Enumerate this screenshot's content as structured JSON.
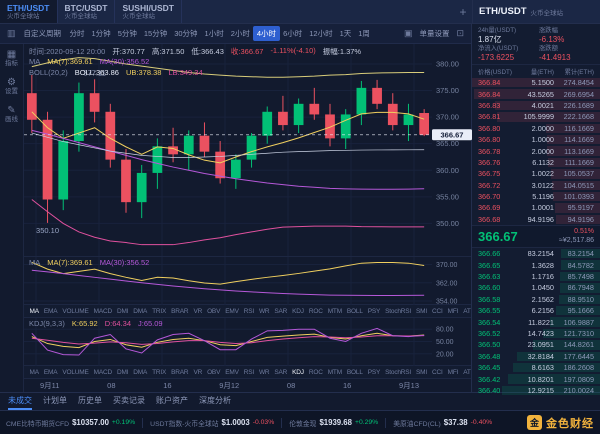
{
  "colors": {
    "green": "#02c076",
    "red": "#eb5160",
    "blue": "#4c8ef7",
    "yellow": "#f0cf5f",
    "purple": "#b558d8",
    "magenta": "#e0519e",
    "white_line": "#cdd4e6",
    "gold": "#f2b33d",
    "grid": "#18223c",
    "axis_text": "#76829f"
  },
  "icons": {
    "gear": "⚙",
    "pencil": "✎",
    "grid": "▦",
    "camera": "▣",
    "expand": "⊡",
    "candle": "▥",
    "star": "☆",
    "plus": "+"
  },
  "topbar": {
    "tabs": [
      {
        "symbol": "ETH/USDT",
        "sub": "火币全球站",
        "active": true
      },
      {
        "symbol": "BTC/USDT",
        "sub": "火币全球站",
        "active": false
      },
      {
        "symbol": "SUSHI/USDT",
        "sub": "火币全球站",
        "active": false
      }
    ],
    "add_button": "+"
  },
  "toolbar": {
    "custom_period": "自定义周期",
    "timeframes": [
      "分时",
      "1分钟",
      "5分钟",
      "15分钟",
      "30分钟",
      "1小时",
      "2小时",
      "4小时",
      "6小时",
      "12小时",
      "1天",
      "1周"
    ],
    "active_timeframe": "4小时",
    "right_label": "单量设置"
  },
  "side_tools": [
    {
      "label": "指标",
      "glyph": "grid"
    },
    {
      "label": "设置",
      "glyph": "gear"
    },
    {
      "label": "画线",
      "glyph": "pencil"
    }
  ],
  "chart_header": {
    "ohlc": [
      {
        "t": "时间:2020-09-12 20:00",
        "c": "gray"
      },
      {
        "t": "开:370.77",
        "c": "light"
      },
      {
        "t": "高:371.50",
        "c": "light"
      },
      {
        "t": "低:366.43",
        "c": "light"
      },
      {
        "t": "收:366.67",
        "c": "red"
      },
      {
        "t": "-1.11%(-4.10)",
        "c": "red"
      },
      {
        "t": "振幅:1.37%",
        "c": "light"
      }
    ],
    "ma_line": [
      {
        "t": "MA",
        "c": "gray"
      },
      {
        "t": "MA(7):369.61",
        "c": "yellow"
      },
      {
        "t": "MA(30):356.52",
        "c": "purple"
      }
    ],
    "boll_line": [
      {
        "t": "BOLL(20,2)",
        "c": "gray"
      },
      {
        "t": "BOLL:363.86",
        "c": "white"
      },
      {
        "t": "UB:378.38",
        "c": "yellow"
      },
      {
        "t": "LB:349.34",
        "c": "magenta"
      }
    ]
  },
  "ma_pane_header": [
    {
      "t": "MA",
      "c": "gray"
    },
    {
      "t": "MA(7):369.61",
      "c": "yellow"
    },
    {
      "t": "MA(30):356.52",
      "c": "purple"
    }
  ],
  "kdj_header": [
    {
      "t": "KDJ(9,3,3)",
      "c": "gray"
    },
    {
      "t": "K:65.92",
      "c": "yellow"
    },
    {
      "t": "D:64.34",
      "c": "magenta"
    },
    {
      "t": "J:65.09",
      "c": "purple"
    }
  ],
  "indicator_tabs": {
    "items": [
      "MA",
      "EMA",
      "VOLUME",
      "MACD",
      "DMI",
      "DMA",
      "TRIX",
      "BRAR",
      "VR",
      "OBV",
      "EMV",
      "RSI",
      "WR",
      "SAR",
      "KDJ",
      "ROC",
      "MTM",
      "BOLL",
      "PSY",
      "StochRSI",
      "SMI",
      "CCI",
      "MFI",
      "ATR"
    ],
    "row1_active": "MA",
    "row2_active": "KDJ"
  },
  "order_book": {
    "title_symbol": "ETH/USDT",
    "title_exchange": "火币全球站",
    "stats": [
      {
        "label": "24h量(USDT)",
        "value": "1.87亿",
        "tone": "light"
      },
      {
        "label": "涨跌幅",
        "value": "-6.13%",
        "tone": "red"
      },
      {
        "label": "净流入(USDT)",
        "value": "-173.6225",
        "tone": "red"
      },
      {
        "label": "涨跌额",
        "value": "-41.4913",
        "tone": "red"
      }
    ],
    "columns": [
      "价格(USDT)",
      "量(ETH)",
      "累计(ETH)"
    ],
    "asks": [
      [
        "366.84",
        "5.1500",
        "274.8454"
      ],
      [
        "366.84",
        "43.5265",
        "269.6954"
      ],
      [
        "366.83",
        "4.0021",
        "226.1689"
      ],
      [
        "366.81",
        "105.9999",
        "222.1668"
      ],
      [
        "366.80",
        "2.0000",
        "116.1669"
      ],
      [
        "366.80",
        "1.0000",
        "114.1669"
      ],
      [
        "366.78",
        "2.0000",
        "113.1669"
      ],
      [
        "366.76",
        "6.1132",
        "111.1669"
      ],
      [
        "366.75",
        "1.0022",
        "105.0537"
      ],
      [
        "366.72",
        "3.0122",
        "104.0515"
      ],
      [
        "366.70",
        "5.1196",
        "101.0393"
      ],
      [
        "366.69",
        "1.0001",
        "95.9197"
      ],
      [
        "366.68",
        "94.9196",
        "94.9196"
      ]
    ],
    "last_price": "366.67",
    "last_change": "0.51%",
    "last_price_cny": "≈¥2,517.86",
    "bids": [
      [
        "366.66",
        "83.2154",
        "83.2154"
      ],
      [
        "366.65",
        "1.3628",
        "84.5782"
      ],
      [
        "366.63",
        "1.1716",
        "85.7498"
      ],
      [
        "366.60",
        "1.0450",
        "86.7948"
      ],
      [
        "366.58",
        "2.1562",
        "88.9510"
      ],
      [
        "366.55",
        "6.2156",
        "95.1666"
      ],
      [
        "366.54",
        "11.8221",
        "106.9887"
      ],
      [
        "366.52",
        "14.7423",
        "121.7310"
      ],
      [
        "366.50",
        "23.0951",
        "144.8261"
      ],
      [
        "366.48",
        "32.8184",
        "177.6445"
      ],
      [
        "366.45",
        "8.6163",
        "186.2608"
      ],
      [
        "366.42",
        "10.8201",
        "197.0809"
      ],
      [
        "366.40",
        "12.9215",
        "210.0024"
      ]
    ]
  },
  "footer": {
    "tabs": [
      "未成交",
      "计划单",
      "历史单",
      "买卖记录",
      "账户资产",
      "深度分析"
    ],
    "active_tab": "未成交",
    "tickers": [
      {
        "name": "CME比特币期货CFD",
        "price": "$10357.00",
        "change": "+0.19%",
        "dir": "up"
      },
      {
        "name": "USDT指数-火币全球站",
        "price": "$1.0003",
        "change": "-0.03%",
        "dir": "down"
      },
      {
        "name": "伦敦金现",
        "price": "$1939.68",
        "change": "+0.29%",
        "dir": "up"
      },
      {
        "name": "美原油CFD(CL)",
        "price": "$37.38",
        "change": "-0.40%",
        "dir": "down"
      }
    ],
    "brand": "金色财经",
    "brand_initial": "金"
  },
  "chart_data": {
    "type": "candlestick",
    "symbol": "ETH/USDT",
    "interval": "4小时",
    "ylim": [
      345,
      383
    ],
    "y_ticks": [
      380,
      375,
      370,
      365,
      360,
      355,
      350
    ],
    "x_labels": [
      "9月11",
      "08",
      "16",
      "9月12",
      "08",
      "16",
      "9月13"
    ],
    "current_price": 366.67,
    "candles": [
      [
        374.5,
        378.0,
        367.0,
        369.5
      ],
      [
        369.5,
        371.0,
        350.1,
        354.5
      ],
      [
        354.5,
        367.5,
        352.5,
        365.5
      ],
      [
        365.5,
        376.5,
        363.5,
        374.5
      ],
      [
        374.5,
        377.11,
        369.0,
        371.0
      ],
      [
        371.0,
        372.5,
        360.5,
        362.0
      ],
      [
        362.0,
        364.0,
        352.0,
        354.0
      ],
      [
        354.0,
        361.0,
        351.0,
        359.5
      ],
      [
        359.5,
        366.0,
        356.5,
        364.5
      ],
      [
        364.5,
        368.0,
        361.5,
        363.0
      ],
      [
        363.0,
        367.5,
        360.0,
        366.5
      ],
      [
        366.5,
        369.0,
        362.5,
        363.5
      ],
      [
        363.5,
        365.5,
        357.5,
        358.5
      ],
      [
        358.5,
        363.0,
        356.5,
        362.0
      ],
      [
        362.0,
        367.0,
        360.5,
        366.5
      ],
      [
        366.5,
        372.0,
        365.0,
        371.0
      ],
      [
        371.0,
        374.0,
        367.5,
        368.5
      ],
      [
        368.5,
        373.5,
        367.0,
        372.5
      ],
      [
        372.5,
        375.5,
        369.5,
        370.5
      ],
      [
        370.5,
        372.5,
        364.5,
        366.0
      ],
      [
        366.0,
        371.5,
        364.0,
        370.5
      ],
      [
        370.5,
        376.8,
        368.5,
        375.5
      ],
      [
        375.5,
        377.0,
        371.5,
        372.5
      ],
      [
        372.5,
        374.5,
        367.5,
        368.5
      ],
      [
        368.5,
        372.5,
        365.5,
        370.5
      ],
      [
        370.77,
        371.5,
        366.43,
        366.67
      ]
    ],
    "overlays": [
      {
        "name": "MA7",
        "color": "#f0cf5f",
        "width": 1,
        "values": [
          371,
          368,
          366,
          367,
          368,
          366,
          364.4,
          363.0,
          364.4,
          364.1,
          362.9,
          361.9,
          361.4,
          362.5,
          363.5,
          364.4,
          365.2,
          366.1,
          367.1,
          368.1,
          369.4,
          370.6,
          370.9,
          370.9,
          370.6,
          369.61
        ]
      },
      {
        "name": "MA30",
        "color": "#b558d8",
        "width": 1,
        "values": [
          367.5,
          366.8,
          366.0,
          365.2,
          364.4,
          363.6,
          362.8,
          362.0,
          361.3,
          360.6,
          360.0,
          359.4,
          358.9,
          358.4,
          358.0,
          357.6,
          357.3,
          357.0,
          356.8,
          356.6,
          356.5,
          356.45,
          356.42,
          356.42,
          356.45,
          356.52
        ]
      },
      {
        "name": "BOLL_UB",
        "color": "#d8cc7a",
        "width": 1,
        "values": [
          379.5,
          380.2,
          380.8,
          381.2,
          381.0,
          380.5,
          380.0,
          379.6,
          379.2,
          378.8,
          378.4,
          378.1,
          377.9,
          377.7,
          377.6,
          377.5,
          377.5,
          377.6,
          377.7,
          377.9,
          378.0,
          378.2,
          378.3,
          378.35,
          378.4,
          378.38
        ]
      },
      {
        "name": "BOLL_MID",
        "color": "#cdd4e6",
        "width": 0.7,
        "values": [
          367.0,
          366.2,
          365.4,
          364.8,
          364.2,
          363.6,
          363.2,
          362.8,
          362.6,
          362.4,
          362.4,
          362.5,
          362.6,
          362.8,
          363.0,
          363.2,
          363.4,
          363.5,
          363.6,
          363.7,
          363.75,
          363.8,
          363.82,
          363.84,
          363.85,
          363.86
        ]
      },
      {
        "name": "BOLL_LB",
        "color": "#e0519e",
        "width": 1,
        "values": [
          354.5,
          352.2,
          350.0,
          348.4,
          347.4,
          346.7,
          346.4,
          346.0,
          346.0,
          346.0,
          346.4,
          346.9,
          347.3,
          347.9,
          348.4,
          348.9,
          349.3,
          349.4,
          349.5,
          349.5,
          349.5,
          349.4,
          349.38,
          349.36,
          349.35,
          349.34
        ]
      }
    ],
    "annotations": [
      {
        "text": "377.11",
        "index": 4,
        "price": 377.11,
        "dy": -4
      },
      {
        "text": "350.10",
        "index": 1,
        "price": 350.1,
        "dy": 10
      }
    ],
    "ma_pane": {
      "ylim": [
        354,
        372
      ],
      "y_ticks": [
        370,
        362,
        354
      ],
      "series": [
        "MA7",
        "MA30"
      ]
    },
    "kdj": {
      "ylim": [
        0,
        100
      ],
      "y_ticks": [
        80,
        50,
        20
      ],
      "series": [
        {
          "name": "K",
          "color": "#f0cf5f",
          "values": [
            62,
            45,
            38,
            35,
            50,
            55,
            42,
            36,
            48,
            55,
            58,
            52,
            42,
            40,
            50,
            60,
            63,
            66,
            68,
            60,
            56,
            64,
            70,
            64,
            63,
            65.92
          ]
        },
        {
          "name": "D",
          "color": "#e0519e",
          "values": [
            58,
            53,
            48,
            44,
            46,
            49,
            47,
            43,
            45,
            49,
            52,
            52,
            48,
            45,
            47,
            52,
            56,
            59,
            62,
            61,
            59,
            61,
            64,
            64,
            63.5,
            64.34
          ]
        },
        {
          "name": "J",
          "color": "#b558d8",
          "values": [
            70,
            29,
            18,
            17,
            58,
            67,
            32,
            22,
            54,
            67,
            70,
            52,
            30,
            30,
            56,
            76,
            77,
            80,
            80,
            58,
            50,
            70,
            82,
            64,
            62,
            65.09
          ]
        }
      ]
    }
  }
}
